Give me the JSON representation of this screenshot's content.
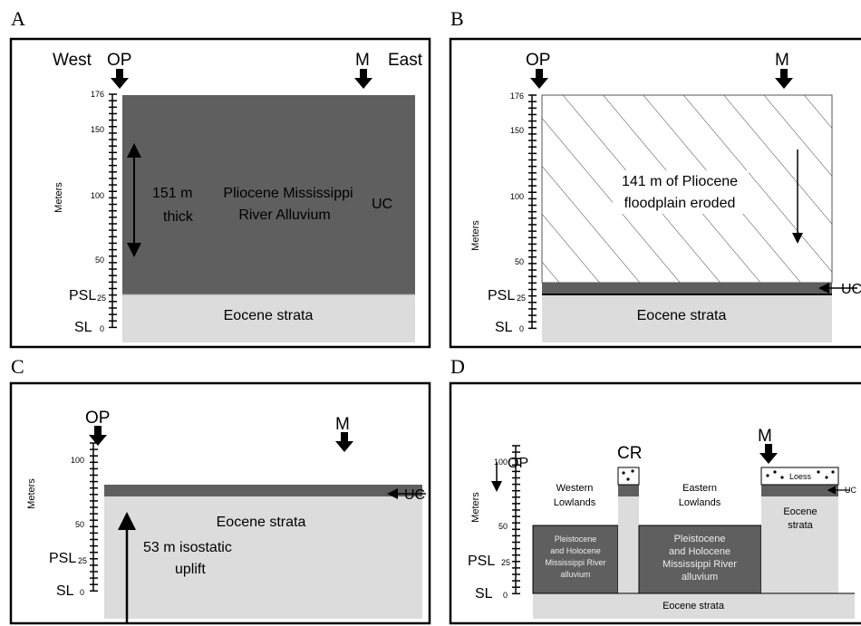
{
  "panels": [
    {
      "label": "A",
      "west": "West",
      "east": "East",
      "op": "OP",
      "m": "M",
      "axis_title": "Meters",
      "ticks": [
        176,
        150,
        100,
        50,
        25,
        0
      ],
      "psl": "PSL",
      "sl": "SL",
      "thickness": [
        "151 m",
        "thick"
      ],
      "unit": [
        "Pliocene Mississippi",
        "River Alluvium"
      ],
      "uc": "UC",
      "base": "Eocene strata"
    },
    {
      "label": "B",
      "op": "OP",
      "m": "M",
      "axis_title": "Meters",
      "ticks": [
        176,
        150,
        100,
        50,
        25,
        0
      ],
      "psl": "PSL",
      "sl": "SL",
      "note": [
        "141 m of Pliocene",
        "floodplain eroded"
      ],
      "uc": "UC",
      "base": "Eocene strata"
    },
    {
      "label": "C",
      "op": "OP",
      "m": "M",
      "axis_title": "Meters",
      "ticks": [
        100,
        50,
        25,
        0
      ],
      "psl": "PSL",
      "sl": "SL",
      "uc": "UC",
      "base": "Eocene strata",
      "note": [
        "53 m isostatic",
        "uplift"
      ]
    },
    {
      "label": "D",
      "op": "OP",
      "cr": "CR",
      "m": "M",
      "axis_title": "Meters",
      "ticks": [
        100,
        50,
        25,
        0
      ],
      "psl": "PSL",
      "sl": "SL",
      "west": [
        "Western",
        "Lowlands"
      ],
      "east": [
        "Eastern",
        "Lowlands"
      ],
      "alluvium_west": [
        "Pleistocene",
        "and Holocene",
        "Mississippi River",
        "alluvium"
      ],
      "alluvium_east": [
        "Pleistocene",
        "and Holocene",
        "Mississippi River",
        "alluvium"
      ],
      "loess": "Loess",
      "uc": "UC",
      "eocene_right": [
        "Eocene",
        "strata"
      ],
      "base": "Eocene strata"
    }
  ]
}
